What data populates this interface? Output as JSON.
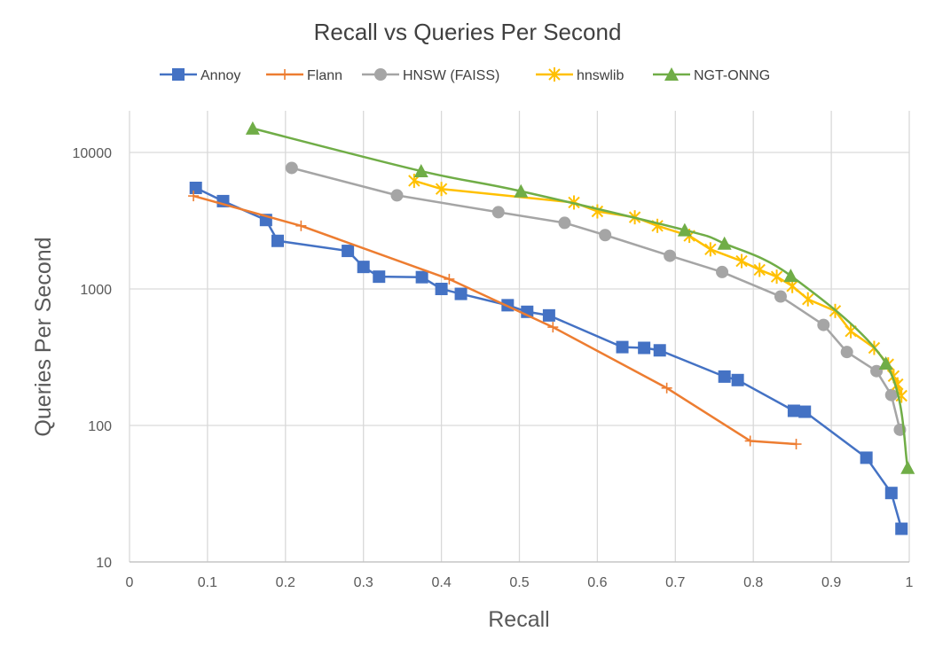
{
  "chart_data": {
    "type": "line",
    "title": "Recall vs Queries Per Second",
    "xlabel": "Recall",
    "ylabel": "Queries Per Second",
    "x_scale": "linear",
    "y_scale": "log",
    "xlim": [
      0,
      1
    ],
    "ylim": [
      10,
      20000
    ],
    "x_ticks": [
      "0",
      "0.1",
      "0.2",
      "0.3",
      "0.4",
      "0.5",
      "0.6",
      "0.7",
      "0.8",
      "0.9",
      "1"
    ],
    "y_ticks": [
      "10",
      "100",
      "1000",
      "10000"
    ],
    "grid": true,
    "legend_position": "top",
    "series": [
      {
        "name": "Annoy",
        "color": "#4472C4",
        "marker": "square",
        "points": [
          [
            0.085,
            5500
          ],
          [
            0.12,
            4400
          ],
          [
            0.175,
            3200
          ],
          [
            0.19,
            2250
          ],
          [
            0.28,
            1900
          ],
          [
            0.3,
            1450
          ],
          [
            0.32,
            1230
          ],
          [
            0.375,
            1220
          ],
          [
            0.4,
            1000
          ],
          [
            0.425,
            920
          ],
          [
            0.485,
            760
          ],
          [
            0.51,
            680
          ],
          [
            0.538,
            640
          ],
          [
            0.632,
            375
          ],
          [
            0.66,
            370
          ],
          [
            0.68,
            355
          ],
          [
            0.763,
            228
          ],
          [
            0.78,
            215
          ],
          [
            0.852,
            128
          ],
          [
            0.866,
            126
          ],
          [
            0.945,
            58
          ],
          [
            0.977,
            32
          ],
          [
            0.99,
            17.5
          ]
        ]
      },
      {
        "name": "Flann",
        "color": "#ED7D31",
        "marker": "plus",
        "points": [
          [
            0.082,
            4800
          ],
          [
            0.22,
            2900
          ],
          [
            0.41,
            1180
          ],
          [
            0.543,
            525
          ],
          [
            0.689,
            188
          ],
          [
            0.796,
            77
          ],
          [
            0.855,
            73
          ]
        ]
      },
      {
        "name": "HNSW (FAISS)",
        "color": "#A5A5A5",
        "marker": "circle",
        "points": [
          [
            0.208,
            7700
          ],
          [
            0.343,
            4850
          ],
          [
            0.473,
            3650
          ],
          [
            0.558,
            3050
          ],
          [
            0.61,
            2480
          ],
          [
            0.693,
            1750
          ],
          [
            0.76,
            1330
          ],
          [
            0.835,
            880
          ],
          [
            0.89,
            545
          ],
          [
            0.92,
            345
          ],
          [
            0.958,
            250
          ],
          [
            0.977,
            167
          ],
          [
            0.988,
            93
          ]
        ]
      },
      {
        "name": "hnswlib",
        "color": "#FFC000",
        "marker": "star",
        "points": [
          [
            0.365,
            6200
          ],
          [
            0.4,
            5400
          ],
          [
            0.57,
            4300
          ],
          [
            0.6,
            3700
          ],
          [
            0.648,
            3350
          ],
          [
            0.677,
            2900
          ],
          [
            0.718,
            2450
          ],
          [
            0.745,
            1950
          ],
          [
            0.785,
            1600
          ],
          [
            0.808,
            1380
          ],
          [
            0.83,
            1230
          ],
          [
            0.85,
            1050
          ],
          [
            0.87,
            840
          ],
          [
            0.905,
            690
          ],
          [
            0.925,
            490
          ],
          [
            0.955,
            370
          ],
          [
            0.973,
            280
          ],
          [
            0.98,
            230
          ],
          [
            0.985,
            200
          ],
          [
            0.99,
            165
          ]
        ]
      },
      {
        "name": "NGT-ONNG",
        "color": "#70AD47",
        "marker": "triangle",
        "points": [
          [
            0.158,
            15000
          ],
          [
            0.374,
            7300
          ],
          [
            0.502,
            5200
          ],
          [
            0.712,
            2700
          ],
          [
            0.763,
            2150
          ],
          [
            0.848,
            1250
          ],
          [
            0.97,
            285
          ],
          [
            0.998,
            49
          ]
        ]
      }
    ]
  }
}
